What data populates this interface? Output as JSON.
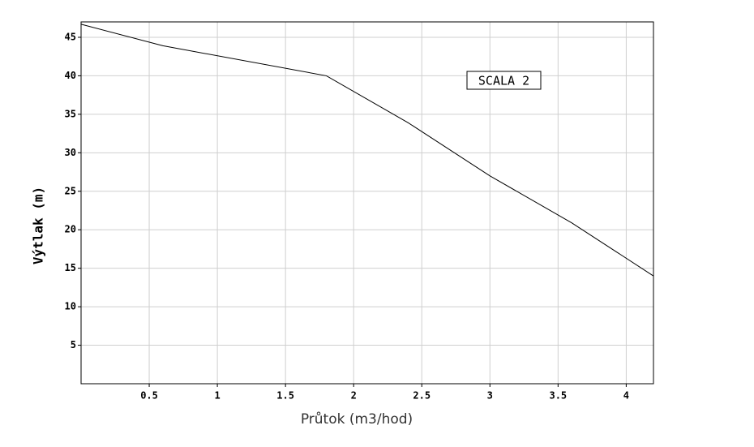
{
  "chart_data": {
    "type": "line",
    "x_label": "Průtok (m3/hod)",
    "y_label": "Výtlak (m)",
    "annotation": "SCALA 2",
    "x": [
      0,
      0.6,
      1.8,
      2.4,
      3.0,
      3.6,
      4.2
    ],
    "series": [
      {
        "color": "#000000",
        "values": [
          46.7,
          43.9,
          40,
          33.9,
          27,
          20.9,
          14
        ]
      }
    ],
    "xlim": [
      0,
      4.2
    ],
    "ylim": [
      0,
      47
    ],
    "xticks": [
      0.5,
      1,
      1.5,
      2,
      2.5,
      3,
      3.5,
      4
    ],
    "yticks": [
      5,
      10,
      15,
      20,
      25,
      30,
      35,
      40,
      45
    ],
    "grid": true
  }
}
